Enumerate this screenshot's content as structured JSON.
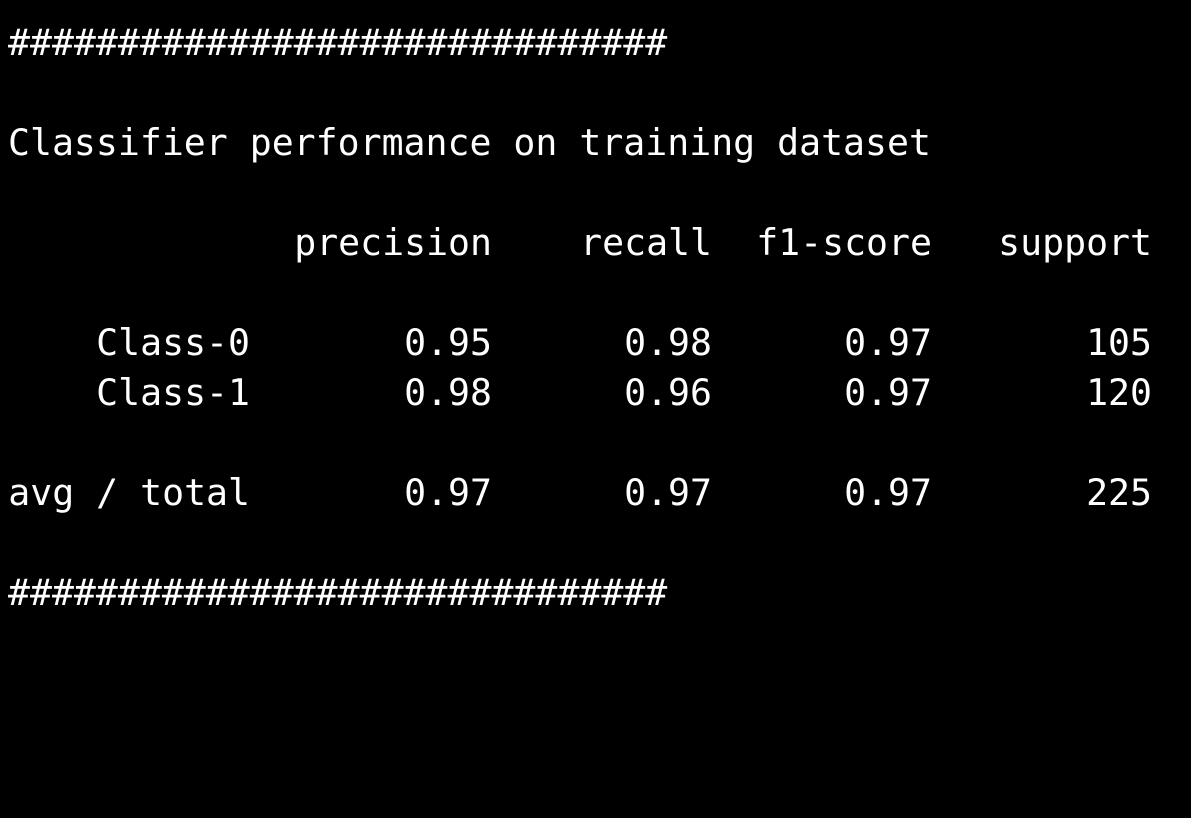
{
  "colors": {
    "background": "#000000",
    "text": "#ffffff"
  },
  "terminal": {
    "separator_top": "##############################",
    "heading": "Classifier performance on training dataset",
    "columns": [
      "precision",
      "recall",
      "f1-score",
      "support"
    ],
    "rows": [
      {
        "label": "Class-0",
        "precision": "0.95",
        "recall": "0.98",
        "f1": "0.97",
        "support": "105"
      },
      {
        "label": "Class-1",
        "precision": "0.98",
        "recall": "0.96",
        "f1": "0.97",
        "support": "120"
      }
    ],
    "summary": {
      "label": "avg / total",
      "precision": "0.97",
      "recall": "0.97",
      "f1": "0.97",
      "support": "225"
    },
    "separator_bottom": "##############################"
  }
}
